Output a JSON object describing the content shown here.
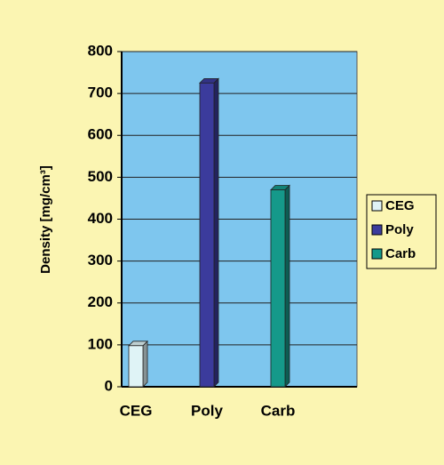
{
  "chart_data": {
    "type": "bar",
    "y_label": "Density [mg/cm³]",
    "categories": [
      "CEG",
      "Poly",
      "Carb"
    ],
    "series": [
      {
        "name": "CEG",
        "color": "#dff3f6",
        "values": [
          98,
          null,
          null
        ]
      },
      {
        "name": "Poly",
        "color": "#3b3b9c",
        "values": [
          null,
          725,
          null
        ]
      },
      {
        "name": "Carb",
        "color": "#15998a",
        "values": [
          null,
          null,
          470
        ]
      }
    ],
    "ylim": [
      0,
      800
    ],
    "yticks": [
      0,
      100,
      200,
      300,
      400,
      500,
      600,
      700,
      800
    ],
    "grid": true,
    "legend": "right"
  }
}
